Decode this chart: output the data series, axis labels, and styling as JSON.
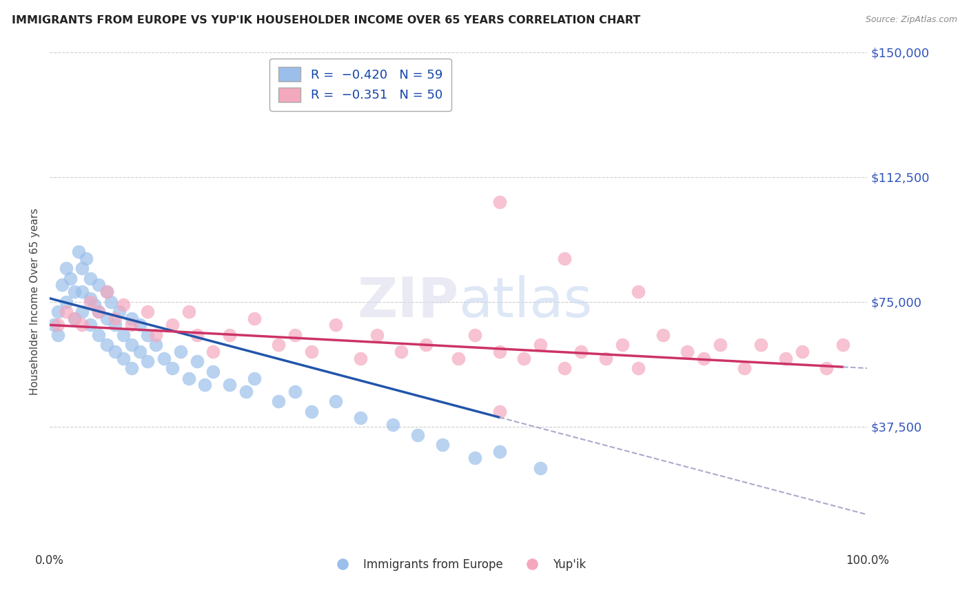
{
  "title": "IMMIGRANTS FROM EUROPE VS YUP'IK HOUSEHOLDER INCOME OVER 65 YEARS CORRELATION CHART",
  "source": "Source: ZipAtlas.com",
  "ylabel": "Householder Income Over 65 years",
  "xlim": [
    0,
    100
  ],
  "ylim": [
    0,
    150000
  ],
  "yticks": [
    0,
    37500,
    75000,
    112500,
    150000
  ],
  "ytick_labels": [
    "",
    "$37,500",
    "$75,000",
    "$112,500",
    "$150,000"
  ],
  "blue_color": "#9bbfea",
  "pink_color": "#f4a8be",
  "blue_line_color": "#2255aa",
  "pink_line_color": "#cc3366",
  "dashed_color": "#aaaacc",
  "blue_points_x": [
    0.5,
    1,
    1,
    1.5,
    2,
    2,
    2.5,
    3,
    3,
    3.5,
    4,
    4,
    4,
    4.5,
    5,
    5,
    5,
    5.5,
    6,
    6,
    6,
    7,
    7,
    7,
    7.5,
    8,
    8,
    8.5,
    9,
    9,
    10,
    10,
    10,
    11,
    11,
    12,
    12,
    13,
    14,
    15,
    16,
    17,
    18,
    19,
    20,
    22,
    24,
    25,
    28,
    30,
    32,
    35,
    38,
    42,
    45,
    48,
    52,
    55,
    60
  ],
  "blue_points_y": [
    68000,
    72000,
    65000,
    80000,
    85000,
    75000,
    82000,
    78000,
    70000,
    90000,
    85000,
    78000,
    72000,
    88000,
    82000,
    76000,
    68000,
    74000,
    80000,
    72000,
    65000,
    78000,
    70000,
    62000,
    75000,
    68000,
    60000,
    72000,
    65000,
    58000,
    70000,
    62000,
    55000,
    68000,
    60000,
    65000,
    57000,
    62000,
    58000,
    55000,
    60000,
    52000,
    57000,
    50000,
    54000,
    50000,
    48000,
    52000,
    45000,
    48000,
    42000,
    45000,
    40000,
    38000,
    35000,
    32000,
    28000,
    30000,
    25000
  ],
  "blue_solid_end": 55,
  "pink_points_x": [
    1,
    2,
    3,
    4,
    5,
    6,
    7,
    8,
    9,
    10,
    12,
    13,
    15,
    17,
    18,
    20,
    22,
    25,
    28,
    30,
    32,
    35,
    38,
    40,
    43,
    46,
    50,
    52,
    55,
    58,
    60,
    63,
    65,
    68,
    70,
    72,
    75,
    78,
    80,
    82,
    85,
    87,
    90,
    92,
    95,
    97,
    55,
    63,
    72,
    55
  ],
  "pink_points_y": [
    68000,
    72000,
    70000,
    68000,
    75000,
    72000,
    78000,
    70000,
    74000,
    68000,
    72000,
    65000,
    68000,
    72000,
    65000,
    60000,
    65000,
    70000,
    62000,
    65000,
    60000,
    68000,
    58000,
    65000,
    60000,
    62000,
    58000,
    65000,
    60000,
    58000,
    62000,
    55000,
    60000,
    58000,
    62000,
    55000,
    65000,
    60000,
    58000,
    62000,
    55000,
    62000,
    58000,
    60000,
    55000,
    62000,
    105000,
    88000,
    78000,
    42000
  ],
  "pink_solid_end": 97,
  "blue_line_x0": 0,
  "blue_line_x1": 100,
  "pink_line_x0": 0,
  "pink_line_x1": 100
}
